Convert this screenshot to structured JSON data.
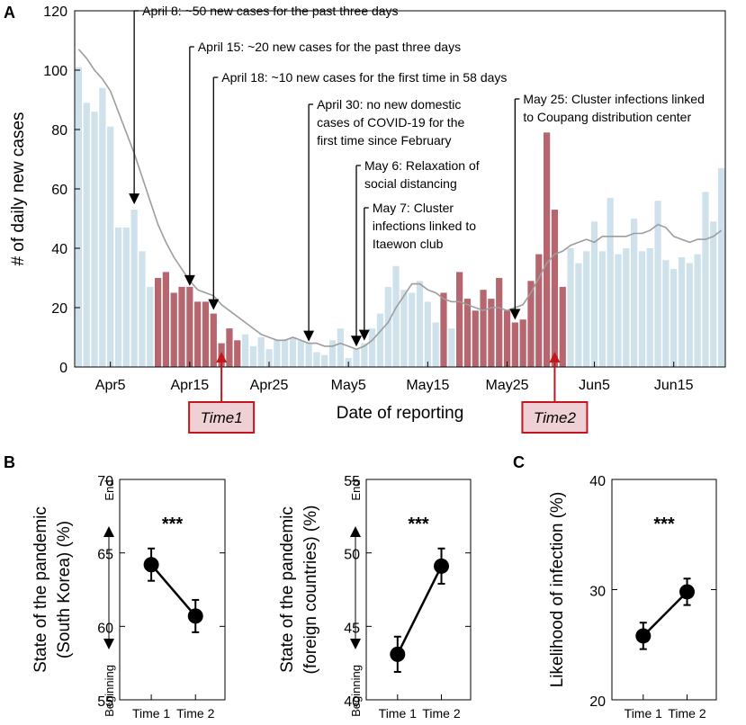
{
  "panels": {
    "a": "A",
    "b": "B",
    "c": "C"
  },
  "colors": {
    "light_bar": "#cfe1ea",
    "dark_bar": "#b5666f",
    "line": "#9d9d9d",
    "box_fill": "#efd0d4",
    "box_stroke": "#c4161c"
  },
  "chart_data": [
    {
      "type": "bar",
      "title": "",
      "xlabel": "Date of reporting",
      "ylabel": "# of daily new cases",
      "ylim": [
        0,
        120
      ],
      "yticks": [
        "0",
        "20",
        "40",
        "60",
        "80",
        "100",
        "120"
      ],
      "xtick_labels": [
        "Apr5",
        "Apr15",
        "Apr25",
        "May5",
        "May15",
        "May25",
        "Jun5",
        "Jun15"
      ],
      "xtick_day_index": [
        4,
        14,
        24,
        34,
        44,
        54,
        65,
        75
      ],
      "start_date": "Apr1",
      "values": [
        101,
        89,
        86,
        94,
        81,
        47,
        47,
        53,
        39,
        27,
        30,
        32,
        25,
        27,
        27,
        22,
        22,
        18,
        8,
        13,
        9,
        11,
        7,
        10,
        6,
        9,
        9,
        10,
        9,
        8,
        5,
        4,
        9,
        13,
        3,
        6,
        8,
        13,
        18,
        27,
        34,
        26,
        25,
        29,
        22,
        15,
        25,
        13,
        32,
        23,
        19,
        26,
        23,
        30,
        19,
        15,
        16,
        29,
        38,
        79,
        53,
        27,
        40,
        35,
        39,
        49,
        39,
        57,
        38,
        40,
        50,
        39,
        40,
        56,
        36,
        33,
        37,
        35,
        38,
        59,
        49,
        67
      ],
      "dark_bars": [
        10,
        11,
        12,
        13,
        14,
        15,
        16,
        17,
        18,
        19,
        20,
        46,
        48,
        49,
        50,
        51,
        52,
        53,
        54,
        55,
        56,
        57,
        58,
        59,
        60,
        61
      ],
      "series": [
        {
          "name": "moving average",
          "values": [
            107,
            104,
            100,
            97,
            93,
            86,
            79,
            72,
            64,
            56,
            48,
            42,
            37,
            33,
            29,
            26,
            25,
            24,
            21,
            19,
            17,
            15,
            13,
            11,
            10,
            9,
            9,
            10,
            9,
            8,
            8,
            7,
            7,
            8,
            7,
            6,
            7,
            9,
            12,
            15,
            20,
            24,
            28,
            28,
            26,
            25,
            23,
            22,
            22,
            21,
            20,
            19,
            20,
            20,
            19,
            20,
            21,
            25,
            30,
            35,
            38,
            39,
            41,
            42,
            43,
            42,
            44,
            44,
            44,
            44,
            45,
            45,
            46,
            48,
            47,
            44,
            43,
            42,
            43,
            43,
            44,
            46
          ]
        }
      ],
      "annotations": [
        {
          "lines": [
            "April 8: ~50 new cases for the past three days"
          ],
          "day": 7
        },
        {
          "lines": [
            "April 15: ~20 new cases for the past three days"
          ],
          "day": 14
        },
        {
          "lines": [
            "April 18: ~10 new cases for the first time in 58 days"
          ],
          "day": 17
        },
        {
          "lines": [
            "April 30: no new domestic",
            "cases of COVID-19 for the",
            "first time since February"
          ],
          "day": 29
        },
        {
          "lines": [
            "May 6: Relaxation of",
            "social distancing"
          ],
          "day": 35
        },
        {
          "lines": [
            "May 7: Cluster",
            "infections linked to",
            "Itaewon club"
          ],
          "day": 36
        },
        {
          "lines": [
            "May 25: Cluster infections linked",
            "to Coupang distribution center"
          ],
          "day": 55
        }
      ],
      "time_markers": [
        {
          "label": "Time1",
          "day": 18
        },
        {
          "label": "Time2",
          "day": 60
        }
      ]
    },
    {
      "type": "line",
      "ylabel_lines": [
        "State of the pandemic",
        "(South Korea) (%)"
      ],
      "categories": [
        "Time 1",
        "Time 2"
      ],
      "values": [
        64.2,
        60.7
      ],
      "errors": [
        1.1,
        1.1
      ],
      "ylim": [
        55,
        70
      ],
      "yticks": [
        "55",
        "60",
        "65",
        "70"
      ],
      "end_label": "End",
      "beginning_label": "Beginning",
      "significance": "***"
    },
    {
      "type": "line",
      "ylabel_lines": [
        "State of the pandemic",
        "(foreign countries) (%)"
      ],
      "categories": [
        "Time 1",
        "Time 2"
      ],
      "values": [
        43.1,
        49.1
      ],
      "errors": [
        1.2,
        1.2
      ],
      "ylim": [
        40,
        55
      ],
      "yticks": [
        "40",
        "45",
        "50",
        "55"
      ],
      "end_label": "End",
      "beginning_label": "Beginning",
      "significance": "***"
    },
    {
      "type": "line",
      "ylabel_lines": [
        "Likelihood of infection (%)"
      ],
      "categories": [
        "Time 1",
        "Time 2"
      ],
      "values": [
        25.8,
        29.8
      ],
      "errors": [
        1.2,
        1.2
      ],
      "ylim": [
        20,
        40
      ],
      "yticks": [
        "20",
        "30",
        "40"
      ],
      "significance": "***"
    }
  ]
}
